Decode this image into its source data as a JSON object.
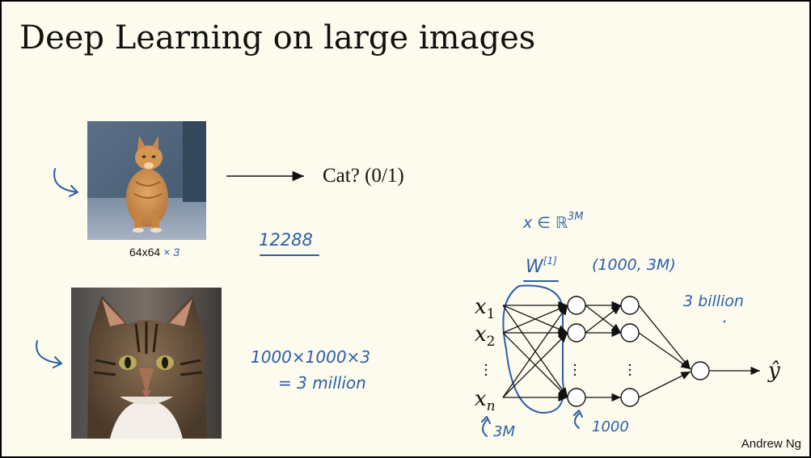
{
  "slide": {
    "title": "Deep Learning on large images",
    "small_image": {
      "alt": "small orange tabby cat sitting",
      "size_label": "64x64",
      "size_mult_annotation": "× 3"
    },
    "arrow_label": "Cat? (0/1)",
    "small_feature_count": "12288",
    "large_image": {
      "alt": "close-up of tabby cat face"
    },
    "large_feature_line1": "1000×1000×3",
    "large_feature_line2": "= 3 million",
    "network": {
      "input_labels": [
        "x",
        "x",
        "x"
      ],
      "input_subscripts": [
        "1",
        "2",
        "n"
      ],
      "output_label": "ŷ",
      "input_space_annotation": "x ∈ ℝ",
      "input_space_superscript": "3M",
      "weight_label": "W",
      "weight_superscript": "[1]",
      "weight_shape": "(1000, 3M)",
      "param_count": "3 billion",
      "input_count": "3M",
      "hidden_count": "1000"
    },
    "author": "Andrew Ng",
    "colors": {
      "background": "#fdfbee",
      "ink": "#2a5fa6",
      "text": "#111111"
    }
  }
}
